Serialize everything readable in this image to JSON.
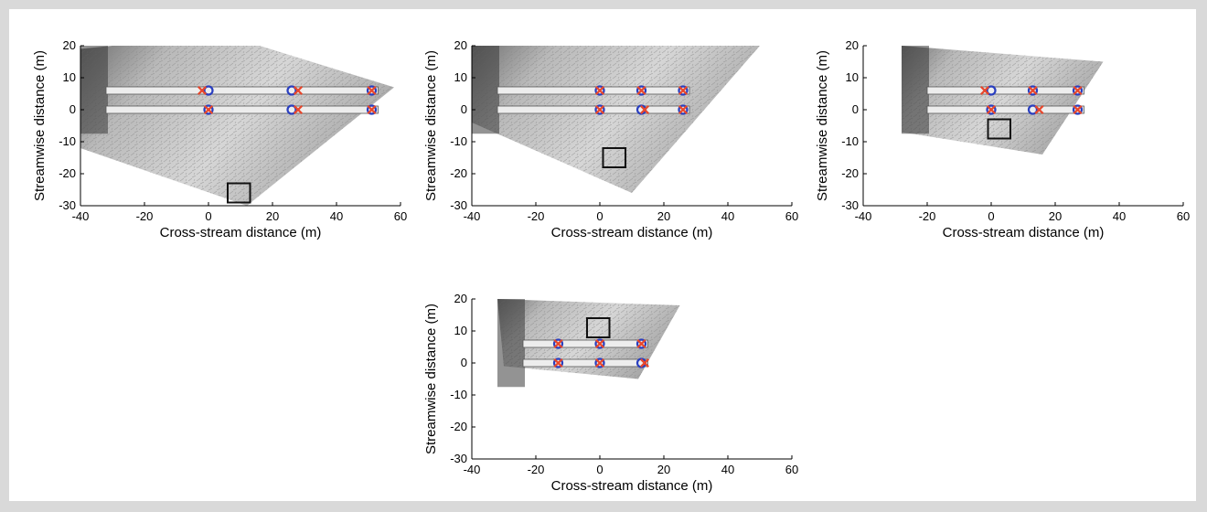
{
  "figure": {
    "background": "#ffffff",
    "page_background": "#d9d9d9",
    "circle_color": "#2a3fbf",
    "cross_color": "#e8472c",
    "box_color": "#111111"
  },
  "chart_data": [
    {
      "type": "scatter",
      "xlabel": "Cross-stream distance (m)",
      "ylabel": "Streamwise distance (m)",
      "xlim": [
        -40,
        60
      ],
      "ylim": [
        -30,
        20
      ],
      "xticks": [
        -40,
        -20,
        0,
        20,
        40,
        60
      ],
      "yticks": [
        -30,
        -20,
        -10,
        0,
        10,
        20
      ],
      "image_footprint": [
        [
          -40,
          19
        ],
        [
          -30,
          20
        ],
        [
          16,
          20
        ],
        [
          58,
          7
        ],
        [
          12,
          -30
        ],
        [
          -40,
          -12
        ]
      ],
      "bridge_y": [
        6,
        0
      ],
      "circles": [
        [
          0,
          6
        ],
        [
          26,
          6
        ],
        [
          51,
          6
        ],
        [
          0,
          0
        ],
        [
          26,
          0
        ],
        [
          51,
          0
        ]
      ],
      "crosses": [
        [
          -2,
          6
        ],
        [
          28,
          6
        ],
        [
          51,
          6
        ],
        [
          0,
          0
        ],
        [
          28,
          0
        ],
        [
          51,
          0
        ]
      ],
      "box": {
        "x": [
          6,
          13
        ],
        "y": [
          -29,
          -23
        ]
      }
    },
    {
      "type": "scatter",
      "xlabel": "Cross-stream distance (m)",
      "ylabel": "Streamwise distance (m)",
      "xlim": [
        -40,
        60
      ],
      "ylim": [
        -30,
        20
      ],
      "xticks": [
        -40,
        -20,
        0,
        20,
        40,
        60
      ],
      "yticks": [
        -30,
        -20,
        -10,
        0,
        10,
        20
      ],
      "image_footprint": [
        [
          -40,
          20
        ],
        [
          50,
          20
        ],
        [
          10,
          -26
        ],
        [
          -40,
          -4
        ]
      ],
      "bridge_y": [
        6,
        0
      ],
      "circles": [
        [
          0,
          6
        ],
        [
          13,
          6
        ],
        [
          26,
          6
        ],
        [
          0,
          0
        ],
        [
          13,
          0
        ],
        [
          26,
          0
        ]
      ],
      "crosses": [
        [
          0,
          6
        ],
        [
          13,
          6
        ],
        [
          26,
          6
        ],
        [
          0,
          0
        ],
        [
          14,
          0
        ],
        [
          26,
          0
        ]
      ],
      "box": {
        "x": [
          1,
          8
        ],
        "y": [
          -18,
          -12
        ]
      }
    },
    {
      "type": "scatter",
      "xlabel": "Cross-stream distance (m)",
      "ylabel": "Streamwise distance (m)",
      "xlim": [
        -40,
        60
      ],
      "ylim": [
        -30,
        20
      ],
      "xticks": [
        -40,
        -20,
        0,
        20,
        40,
        60
      ],
      "yticks": [
        -30,
        -20,
        -10,
        0,
        10,
        20
      ],
      "image_footprint": [
        [
          -28,
          20
        ],
        [
          35,
          15
        ],
        [
          16,
          -14
        ],
        [
          -28,
          -7
        ]
      ],
      "bridge_y": [
        6,
        0
      ],
      "circles": [
        [
          0,
          6
        ],
        [
          13,
          6
        ],
        [
          27,
          6
        ],
        [
          0,
          0
        ],
        [
          13,
          0
        ],
        [
          27,
          0
        ]
      ],
      "crosses": [
        [
          -2,
          6
        ],
        [
          13,
          6
        ],
        [
          27,
          6
        ],
        [
          0,
          0
        ],
        [
          15,
          0
        ],
        [
          27,
          0
        ]
      ],
      "box": {
        "x": [
          -1,
          6
        ],
        "y": [
          -9,
          -3
        ]
      }
    },
    {
      "type": "scatter",
      "xlabel": "Cross-stream distance (m)",
      "ylabel": "Streamwise distance (m)",
      "xlim": [
        -40,
        60
      ],
      "ylim": [
        -30,
        20
      ],
      "xticks": [
        -40,
        -20,
        0,
        20,
        40,
        60
      ],
      "yticks": [
        -30,
        -20,
        -10,
        0,
        10,
        20
      ],
      "image_footprint": [
        [
          -32,
          20
        ],
        [
          25,
          18
        ],
        [
          12,
          -5
        ],
        [
          -30,
          -1
        ]
      ],
      "bridge_y": [
        6,
        0
      ],
      "circles": [
        [
          -13,
          6
        ],
        [
          0,
          6
        ],
        [
          13,
          6
        ],
        [
          -13,
          0
        ],
        [
          0,
          0
        ],
        [
          13,
          0
        ]
      ],
      "crosses": [
        [
          -13,
          6
        ],
        [
          0,
          6
        ],
        [
          13,
          6
        ],
        [
          -13,
          0
        ],
        [
          0,
          0
        ],
        [
          14,
          0
        ]
      ],
      "box": {
        "x": [
          -4,
          3
        ],
        "y": [
          8,
          14
        ]
      }
    }
  ]
}
